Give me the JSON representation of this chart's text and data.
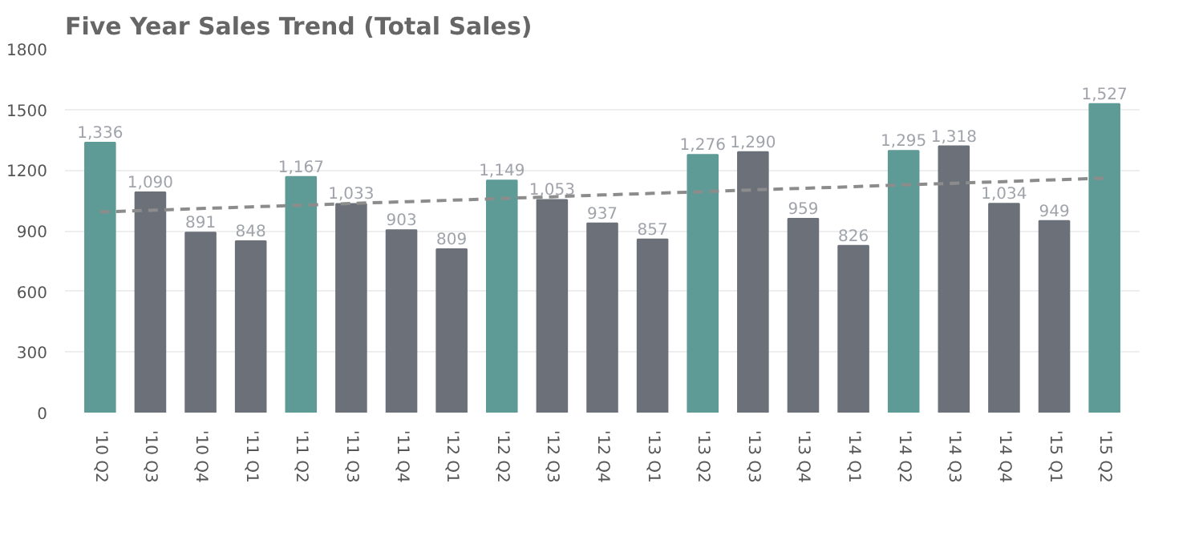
{
  "chart_data": {
    "type": "bar",
    "title": "Five Year Sales Trend (Total Sales)",
    "categories": [
      "'10 Q2",
      "'10 Q3",
      "'10 Q4",
      "'11 Q1",
      "'11 Q2",
      "'11 Q3",
      "'11 Q4",
      "'12 Q1",
      "'12 Q2",
      "'12 Q3",
      "'12 Q4",
      "'13 Q1",
      "'13 Q2",
      "'13 Q3",
      "'13 Q4",
      "'14 Q1",
      "'14 Q2",
      "'14 Q3",
      "'14 Q4",
      "'15 Q1",
      "'15 Q2"
    ],
    "series": [
      {
        "colors": [
          "#5f9b96",
          "#6b7079",
          "#6b7079",
          "#6b7079",
          "#5f9b96",
          "#6b7079",
          "#6b7079",
          "#6b7079",
          "#5f9b96",
          "#6b7079",
          "#6b7079",
          "#6b7079",
          "#5f9b96",
          "#6b7079",
          "#6b7079",
          "#6b7079",
          "#5f9b96",
          "#6b7079",
          "#6b7079",
          "#6b7079",
          "#5f9b96"
        ],
        "values": [
          1336,
          1090,
          891,
          848,
          1167,
          1033,
          903,
          809,
          1149,
          1053,
          937,
          857,
          1276,
          1290,
          959,
          826,
          1295,
          1318,
          1034,
          949,
          1527
        ],
        "value_labels": [
          "1,336",
          "1,090",
          "891",
          "848",
          "1,167",
          "1,033",
          "903",
          "809",
          "1,149",
          "1,053",
          "937",
          "857",
          "1,276",
          "1,290",
          "959",
          "826",
          "1,295",
          "1,318",
          "1,034",
          "949",
          "1,527"
        ]
      },
      {
        "type": "line",
        "color": "#8c8c8c",
        "line_style": "dashed",
        "marker": "none",
        "values": [
          993,
          1001,
          1010,
          1018,
          1026,
          1035,
          1043,
          1051,
          1060,
          1068,
          1077,
          1085,
          1093,
          1102,
          1110,
          1118,
          1127,
          1135,
          1143,
          1152,
          1160
        ]
      }
    ],
    "ylim": [
      0,
      1800
    ],
    "yticks": [
      0,
      300,
      600,
      900,
      1200,
      1500,
      1800
    ],
    "grid": "y"
  }
}
